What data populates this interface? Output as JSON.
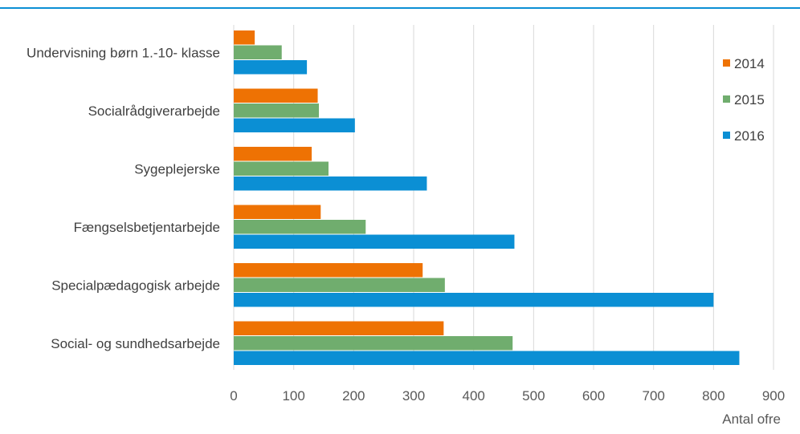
{
  "chart_data": {
    "type": "bar",
    "orientation": "horizontal",
    "categories": [
      "Undervisning børn 1.-10- klasse",
      "Socialrådgiverarbejde",
      "Sygeplejerske",
      "Fængselsbetjentarbejde",
      "Specialpædagogisk arbejde",
      "Social- og sundhedsarbejde"
    ],
    "series": [
      {
        "name": "2014",
        "color": "#ee7203",
        "values": [
          35,
          140,
          130,
          145,
          315,
          350
        ]
      },
      {
        "name": "2015",
        "color": "#70ad6e",
        "values": [
          80,
          142,
          158,
          220,
          352,
          465
        ]
      },
      {
        "name": "2016",
        "color": "#0b8fd4",
        "values": [
          122,
          202,
          322,
          468,
          800,
          843
        ]
      }
    ],
    "xlabel": "Antal ofre",
    "xlim": [
      0,
      900
    ],
    "xticks": [
      "0",
      "100",
      "200",
      "300",
      "400",
      "500",
      "600",
      "700",
      "800",
      "900"
    ],
    "grid": true,
    "legend_position": "right"
  }
}
